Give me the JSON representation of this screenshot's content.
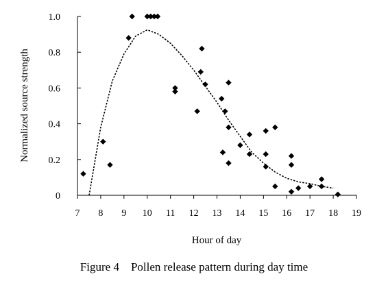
{
  "figure": {
    "caption": "Figure 4    Pollen release pattern during day time"
  },
  "chart_data": {
    "type": "scatter",
    "xlabel": "Hour of day",
    "ylabel": "Normalized source strength",
    "xlim": [
      7,
      19
    ],
    "ylim": [
      0,
      1.0
    ],
    "x_ticks": [
      "7",
      "8",
      "9",
      "10",
      "11",
      "12",
      "13",
      "14",
      "15",
      "16",
      "17",
      "18",
      "19"
    ],
    "y_ticks": [
      "0",
      "0.2",
      "0.4",
      "0.6",
      "0.8",
      "1.0"
    ],
    "grid": false,
    "legend": "none",
    "series": [
      {
        "marker": "diamond",
        "color": "#000000",
        "points": [
          {
            "x": 7.25,
            "y": 0.12
          },
          {
            "x": 8.1,
            "y": 0.3
          },
          {
            "x": 8.4,
            "y": 0.17
          },
          {
            "x": 9.2,
            "y": 0.88
          },
          {
            "x": 9.35,
            "y": 1.0
          },
          {
            "x": 10.0,
            "y": 1.0
          },
          {
            "x": 10.15,
            "y": 1.0
          },
          {
            "x": 10.3,
            "y": 1.0
          },
          {
            "x": 10.45,
            "y": 1.0
          },
          {
            "x": 11.2,
            "y": 0.6
          },
          {
            "x": 11.2,
            "y": 0.58
          },
          {
            "x": 12.15,
            "y": 0.47
          },
          {
            "x": 12.3,
            "y": 0.69
          },
          {
            "x": 12.35,
            "y": 0.82
          },
          {
            "x": 12.5,
            "y": 0.62
          },
          {
            "x": 13.2,
            "y": 0.54
          },
          {
            "x": 13.25,
            "y": 0.24
          },
          {
            "x": 13.35,
            "y": 0.47
          },
          {
            "x": 13.5,
            "y": 0.63
          },
          {
            "x": 13.5,
            "y": 0.38
          },
          {
            "x": 13.5,
            "y": 0.18
          },
          {
            "x": 14.0,
            "y": 0.28
          },
          {
            "x": 14.4,
            "y": 0.34
          },
          {
            "x": 14.4,
            "y": 0.23
          },
          {
            "x": 15.1,
            "y": 0.36
          },
          {
            "x": 15.1,
            "y": 0.23
          },
          {
            "x": 15.1,
            "y": 0.16
          },
          {
            "x": 15.5,
            "y": 0.38
          },
          {
            "x": 15.5,
            "y": 0.05
          },
          {
            "x": 16.2,
            "y": 0.22
          },
          {
            "x": 16.2,
            "y": 0.17
          },
          {
            "x": 16.2,
            "y": 0.02
          },
          {
            "x": 16.5,
            "y": 0.04
          },
          {
            "x": 17.0,
            "y": 0.05
          },
          {
            "x": 17.5,
            "y": 0.09
          },
          {
            "x": 17.5,
            "y": 0.05
          },
          {
            "x": 18.2,
            "y": 0.005
          }
        ]
      }
    ],
    "fitted_curve": {
      "style": "dashed",
      "color": "#000000",
      "points": [
        {
          "x": 7.5,
          "y": 0.0
        },
        {
          "x": 8.0,
          "y": 0.38
        },
        {
          "x": 8.5,
          "y": 0.64
        },
        {
          "x": 9.0,
          "y": 0.79
        },
        {
          "x": 9.5,
          "y": 0.89
        },
        {
          "x": 10.0,
          "y": 0.925
        },
        {
          "x": 10.5,
          "y": 0.9
        },
        {
          "x": 11.0,
          "y": 0.85
        },
        {
          "x": 11.5,
          "y": 0.78
        },
        {
          "x": 12.0,
          "y": 0.7
        },
        {
          "x": 12.5,
          "y": 0.61
        },
        {
          "x": 13.0,
          "y": 0.52
        },
        {
          "x": 13.5,
          "y": 0.42
        },
        {
          "x": 14.0,
          "y": 0.33
        },
        {
          "x": 14.5,
          "y": 0.24
        },
        {
          "x": 15.0,
          "y": 0.18
        },
        {
          "x": 15.5,
          "y": 0.13
        },
        {
          "x": 16.0,
          "y": 0.095
        },
        {
          "x": 16.5,
          "y": 0.075
        },
        {
          "x": 17.0,
          "y": 0.065
        },
        {
          "x": 17.5,
          "y": 0.05
        },
        {
          "x": 18.0,
          "y": 0.04
        }
      ]
    }
  }
}
